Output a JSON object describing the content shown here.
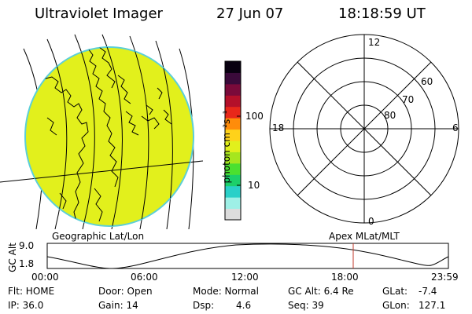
{
  "header": {
    "instrument": "Ultraviolet Imager",
    "date": "27 Jun 07",
    "time": "18:18:59 UT"
  },
  "colorbar": {
    "unit_label": "photon cm⁻²s⁻¹",
    "ticks": [
      "100",
      "10"
    ],
    "colors": [
      "#dcdcdc",
      "#9ef0e6",
      "#2ad0c8",
      "#1cd06a",
      "#4be030",
      "#a6e61e",
      "#e2f01c",
      "#ffd21a",
      "#ff8c0a",
      "#e8281a",
      "#b4102a",
      "#7a0a3a",
      "#3a0a3a",
      "#080010"
    ]
  },
  "polar": {
    "labels": {
      "top": "12",
      "bottom": "0",
      "left": "18",
      "right": "6"
    },
    "ring_labels": [
      "60",
      "70",
      "80"
    ]
  },
  "timeline": {
    "left_title": "Geographic Lat/Lon",
    "right_title": "Apex MLat/MLT",
    "y_label": "GC Alt",
    "y_ticks": [
      "9.0",
      "1.8"
    ],
    "x_ticks": [
      "00:00",
      "06:00",
      "12:00",
      "18:00",
      "23:59"
    ],
    "marker_color": "#c0392b"
  },
  "info": {
    "flt": "Flt: HOME",
    "ip": "IP: 36.0",
    "door": "Door: Open",
    "gain": "Gain: 14",
    "mode": "Mode: Normal",
    "dsp_label": "Dsp:",
    "dsp_value": "4.6",
    "gc_alt": "GC Alt: 6.4 Re",
    "seq": "Seq: 39",
    "glat_label": "GLat:",
    "glat_value": "-7.4",
    "glon_label": "GLon:",
    "glon_value": "127.1"
  },
  "earth": {
    "disc_color": "#e2f01c",
    "limb_color": "#5ccfd8"
  }
}
